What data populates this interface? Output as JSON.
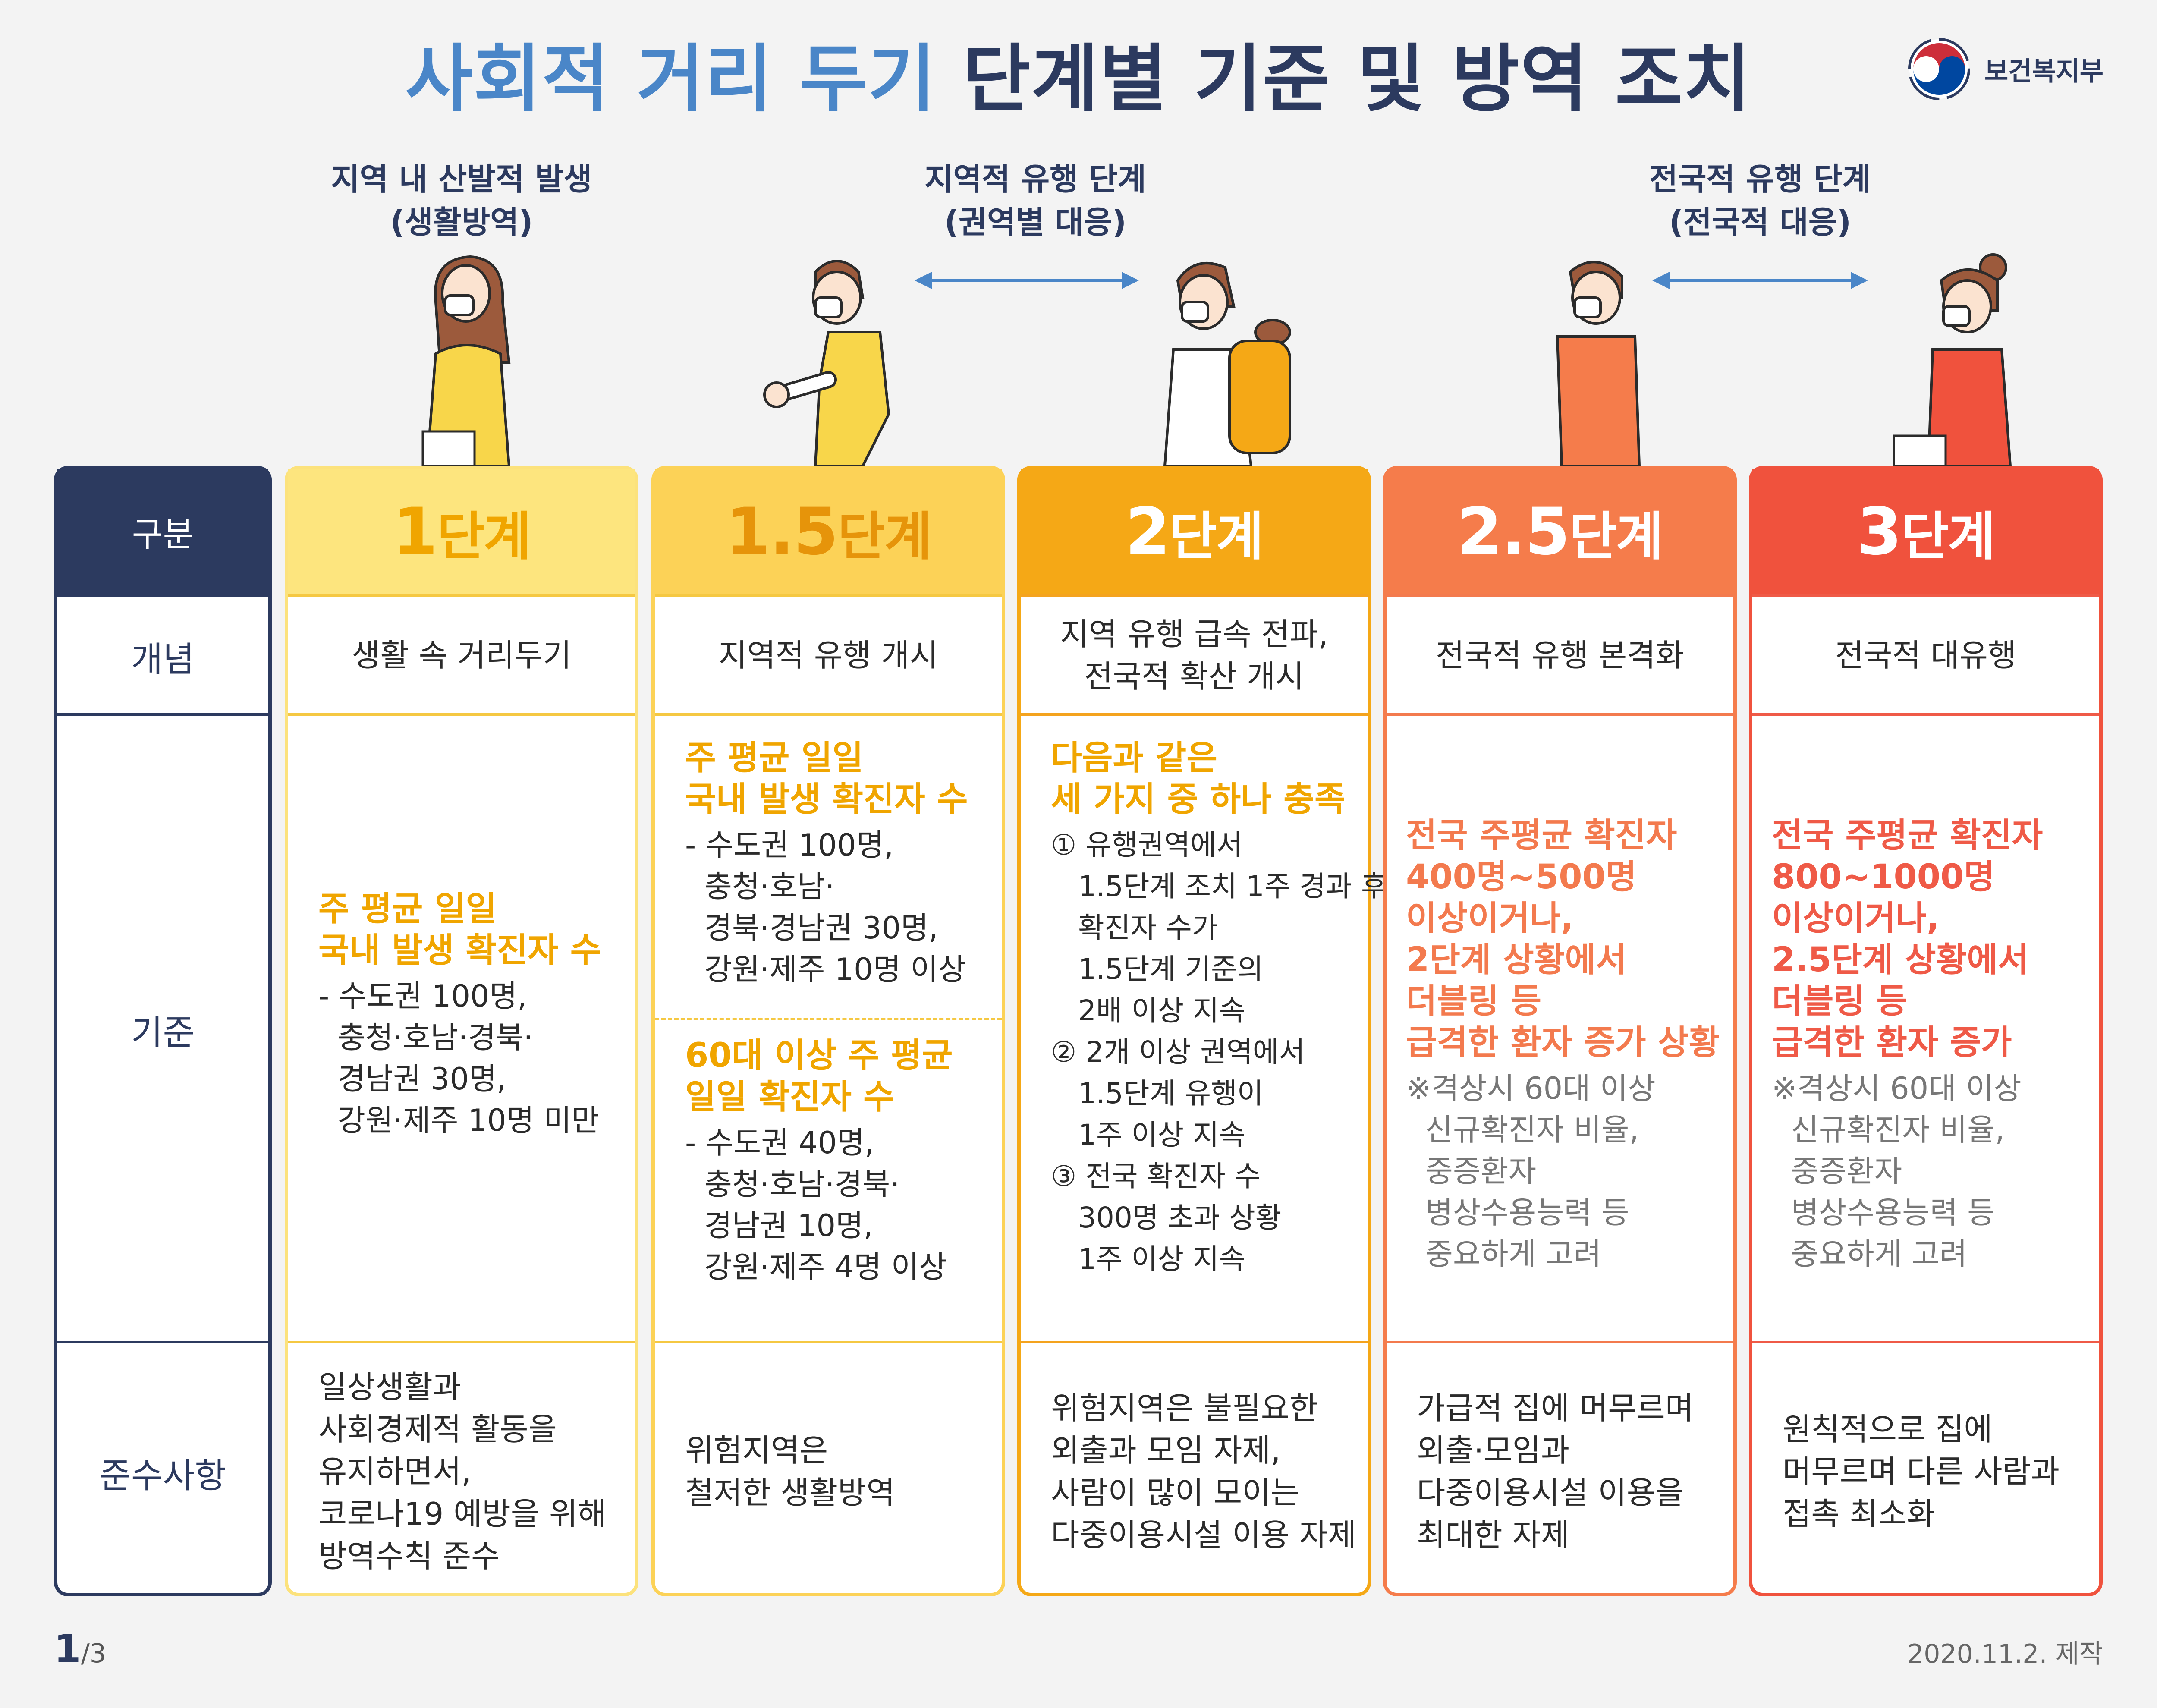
{
  "title": {
    "part1": "사회적 거리 두기",
    "part2": "단계별 기준 및 방역 조치"
  },
  "logo": {
    "name": "보건복지부"
  },
  "phases": [
    {
      "line1": "지역 내 산발적 발생",
      "line2": "(생활방역)"
    },
    {
      "line1": "지역적 유행 단계",
      "line2": "(권역별 대응)"
    },
    {
      "line1": "전국적 유행 단계",
      "line2": "(전국적 대응)"
    }
  ],
  "labels": {
    "head": "구분",
    "concept": "개념",
    "criteria": "기준",
    "rules": "준수사항"
  },
  "columns": [
    {
      "num": "1",
      "suffix": "단계",
      "color": "#f5c842",
      "head_bg": "#fde57e",
      "head_color": "#f0a500",
      "concept": [
        "생활 속 거리두기"
      ],
      "criteria": [
        {
          "hl": [
            "주 평균 일일",
            "국내 발생 확진자 수"
          ],
          "items": [
            "- 수도권 100명,",
            "  충청·호남·경북·",
            "  경남권 30명,",
            "  강원·제주 10명 미만"
          ]
        }
      ],
      "rules": [
        "일상생활과",
        "사회경제적 활동을",
        "유지하면서,",
        "코로나19 예방을 위해",
        "방역수칙 준수"
      ]
    },
    {
      "num": "1.5",
      "suffix": "단계",
      "color": "#f5c842",
      "head_bg": "#fcd257",
      "head_color": "#e6940a",
      "concept": [
        "지역적 유행 개시"
      ],
      "criteria": [
        {
          "hl": [
            "주 평균 일일",
            "국내 발생 확진자 수"
          ],
          "items": [
            "- 수도권 100명,",
            "  충청·호남·",
            "  경북·경남권 30명,",
            "  강원·제주 10명 이상"
          ]
        },
        {
          "hl": [
            "60대 이상 주 평균",
            "일일 확진자 수"
          ],
          "items": [
            "- 수도권 40명,",
            "  충청·호남·경북·",
            "  경남권 10명,",
            "  강원·제주 4명 이상"
          ]
        }
      ],
      "rules": [
        "위험지역은",
        "철저한 생활방역"
      ]
    },
    {
      "num": "2",
      "suffix": "단계",
      "color": "#f4a31e",
      "head_bg": "#f5a816",
      "head_color": "#ffffff",
      "concept": [
        "지역 유행 급속 전파,",
        "전국적 확산 개시"
      ],
      "criteria": [
        {
          "hl": [
            "다음과 같은",
            "세 가지 중 하나 충족"
          ],
          "items": [
            "① 유행권역에서",
            "   1.5단계 조치 1주 경과 후,",
            "   확진자 수가",
            "   1.5단계 기준의",
            "   2배 이상 지속",
            "② 2개 이상 권역에서",
            "   1.5단계 유행이",
            "   1주 이상 지속",
            "③ 전국 확진자 수",
            "   300명 초과 상황",
            "   1주 이상 지속"
          ]
        }
      ],
      "rules": [
        "위험지역은 불필요한",
        "외출과 모임 자제,",
        "사람이 많이 모이는",
        "다중이용시설 이용 자제"
      ]
    },
    {
      "num": "2.5",
      "suffix": "단계",
      "color": "#f37a4e",
      "head_bg": "#f57c4b",
      "head_color": "#ffffff",
      "concept": [
        "전국적 유행 본격화"
      ],
      "criteria": [
        {
          "hl": [
            "전국 주평균 확진자",
            "400명~500명",
            "이상이거나,",
            "2단계 상황에서",
            "더블링 등",
            "급격한 환자 증가 상황"
          ],
          "note": [
            "※격상시 60대 이상",
            "  신규확진자 비율,",
            "  중증환자",
            "  병상수용능력 등",
            "  중요하게 고려"
          ]
        }
      ],
      "rules": [
        "가급적 집에 머무르며",
        "외출·모임과",
        "다중이용시설 이용을",
        "최대한 자제"
      ]
    },
    {
      "num": "3",
      "suffix": "단계",
      "color": "#ef5a47",
      "head_bg": "#f0523d",
      "head_color": "#ffffff",
      "concept": [
        "전국적 대유행"
      ],
      "criteria": [
        {
          "hl": [
            "전국 주평균 확진자",
            "800~1000명",
            "이상이거나,",
            "2.5단계 상황에서",
            "더블링 등",
            "급격한 환자 증가"
          ],
          "note": [
            "※격상시 60대 이상",
            "  신규확진자 비율,",
            "  중증환자",
            "  병상수용능력 등",
            "  중요하게 고려"
          ]
        }
      ],
      "rules": [
        "원칙적으로 집에",
        "머무르며 다른 사람과",
        "접촉 최소화"
      ]
    }
  ],
  "footer": {
    "page": "1",
    "total": "/3",
    "date": "2020.11.2. 제작"
  }
}
